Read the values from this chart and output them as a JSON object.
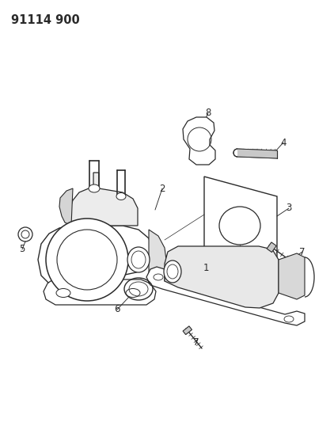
{
  "title": "91114 900",
  "bg_color": "#ffffff",
  "fig_width": 3.98,
  "fig_height": 5.33,
  "dpi": 100,
  "line_color": "#2a2a2a",
  "title_fontsize": 10.5,
  "title_fontweight": "bold"
}
